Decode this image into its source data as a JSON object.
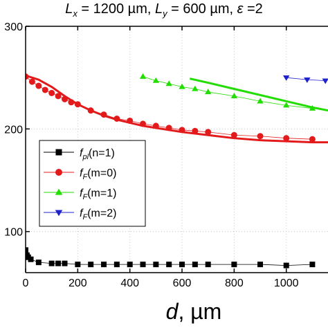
{
  "chart_data": {
    "type": "line",
    "title_parts": [
      {
        "sym": "L",
        "sub": "x",
        "rest": " = 1200 µm, "
      },
      {
        "sym": "L",
        "sub": "y",
        "rest": " = 600 µm, "
      },
      {
        "sym": "ε",
        "sub": "",
        "rest": " =2"
      }
    ],
    "xlabel_symbol": "d",
    "xlabel_unit": ", µm",
    "xlim": [
      0,
      1160
    ],
    "ylim": [
      60,
      300
    ],
    "x_ticks": [
      0,
      200,
      400,
      600,
      800,
      1000
    ],
    "y_ticks": [
      100,
      200,
      300
    ],
    "y_tick_labels": [
      "100",
      "200",
      "300"
    ],
    "grid": true,
    "legend_position": "left-center",
    "series": [
      {
        "name": "n=1",
        "legend_main": "f",
        "legend_sub": "pl",
        "legend_rest": "(n=1)",
        "color": "#000000",
        "marker": "square",
        "x": [
          0,
          5,
          10,
          20,
          50,
          100,
          125,
          150,
          200,
          250,
          300,
          350,
          400,
          450,
          500,
          550,
          600,
          650,
          700,
          800,
          900,
          1000,
          1100
        ],
        "y": [
          82,
          77,
          75,
          73,
          70,
          69,
          69,
          69,
          68,
          68,
          68,
          68,
          68,
          68,
          68,
          68,
          68,
          68,
          68,
          68,
          68,
          67,
          68
        ]
      },
      {
        "name": "m=0",
        "legend_main": "f",
        "legend_sub": "F",
        "legend_rest": "(m=0)",
        "color": "#e31a1c",
        "marker": "circle",
        "x": [
          0,
          25,
          50,
          75,
          100,
          125,
          150,
          175,
          200,
          250,
          300,
          350,
          400,
          450,
          500,
          550,
          600,
          650,
          700,
          800,
          900,
          1000,
          1100
        ],
        "y": [
          251,
          246,
          242,
          238,
          235,
          232,
          229,
          226,
          224,
          218,
          214,
          210,
          208,
          205,
          203,
          201,
          199,
          198,
          197,
          194,
          193,
          191,
          190
        ],
        "fit": {
          "x": [
            0,
            50,
            100,
            150,
            200,
            250,
            300,
            350,
            400,
            450,
            500,
            600,
            700,
            800,
            900,
            1000,
            1100,
            1160
          ],
          "y": [
            252,
            248,
            241,
            232,
            224,
            218,
            213,
            209,
            206,
            203,
            201,
            197,
            194,
            191,
            189,
            188,
            187,
            187
          ]
        }
      },
      {
        "name": "m=1",
        "legend_main": "f",
        "legend_sub": "F",
        "legend_rest": "(m=1)",
        "color": "#22dd00",
        "marker": "triangle-up",
        "x": [
          450,
          500,
          550,
          600,
          650,
          700,
          800,
          900,
          1000,
          1100
        ],
        "y": [
          251,
          247,
          244,
          241,
          239,
          236,
          232,
          227,
          223,
          220
        ],
        "fit": {
          "x": [
            630,
            700,
            800,
            900,
            1000,
            1100,
            1160
          ],
          "y": [
            249,
            245,
            239,
            233,
            227,
            221,
            218
          ]
        }
      },
      {
        "name": "m=2",
        "legend_main": "f",
        "legend_sub": "F",
        "legend_rest": "(m=2)",
        "color": "#1f22cc",
        "marker": "triangle-down",
        "x": [
          1000,
          1080,
          1150
        ],
        "y": [
          250,
          248,
          247
        ]
      }
    ]
  }
}
